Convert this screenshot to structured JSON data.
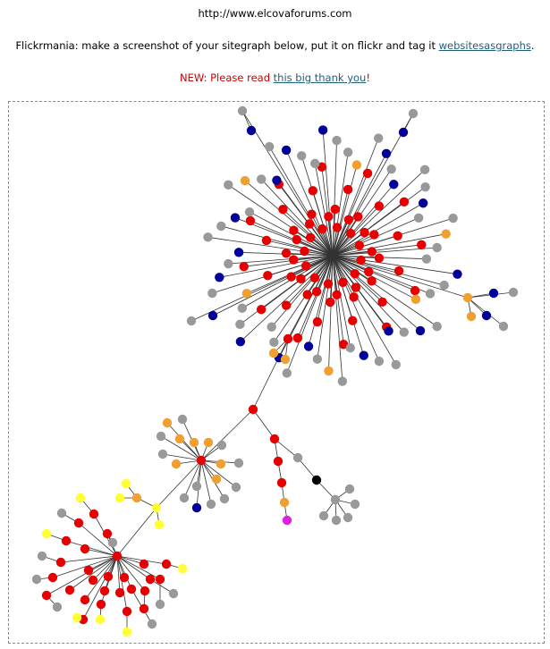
{
  "header": {
    "site_url": "http://www.elcovaforums.com",
    "tag_prefix": "Flickrmania: make a screenshot of your sitegraph below, put it on flickr and tag it ",
    "tag_link": "websitesasgraphs",
    "tag_suffix": ".",
    "notice_prefix": "NEW: Please read ",
    "notice_link": "this big thank you",
    "notice_suffix": "!"
  },
  "graph": {
    "colors": {
      "edge": "#333333",
      "red": "#e60000",
      "navy": "#000099",
      "gray": "#999999",
      "orange": "#f0a030",
      "yellow": "#ffff33",
      "black": "#000000",
      "magenta": "#e020e0"
    }
  }
}
